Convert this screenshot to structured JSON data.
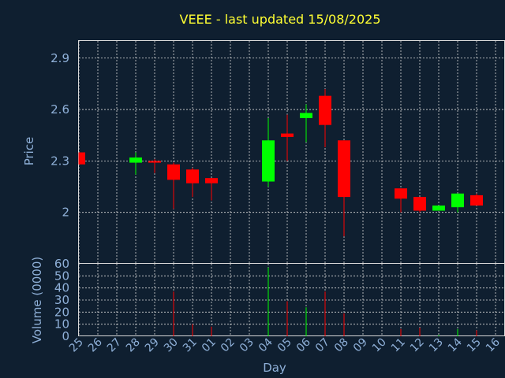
{
  "chart_data": {
    "type": "candlestick",
    "title": "VEEE - last updated 15/08/2025",
    "xlabel": "Day",
    "price_panel": {
      "ylabel": "Price",
      "ylim": [
        1.7,
        3.0
      ],
      "yticks": [
        "2",
        "2.3",
        "2.6",
        "2.9"
      ],
      "grid": true
    },
    "volume_panel": {
      "ylabel": "Volume (0000)",
      "ylim": [
        0,
        60
      ],
      "yticks": [
        "0",
        "10",
        "20",
        "30",
        "40",
        "50",
        "60"
      ],
      "grid": true
    },
    "categories": [
      "25",
      "26",
      "27",
      "28",
      "29",
      "30",
      "31",
      "01",
      "02",
      "03",
      "04",
      "05",
      "06",
      "07",
      "08",
      "09",
      "10",
      "11",
      "12",
      "13",
      "14",
      "15",
      "16"
    ],
    "candles": [
      {
        "day": "25",
        "open": 2.35,
        "close": 2.28,
        "high": 2.35,
        "low": 2.28,
        "volume": 0
      },
      {
        "day": "28",
        "open": 2.29,
        "close": 2.32,
        "high": 2.35,
        "low": 2.22,
        "volume": 0
      },
      {
        "day": "29",
        "open": 2.3,
        "close": 2.29,
        "high": 2.31,
        "low": 2.23,
        "volume": 0
      },
      {
        "day": "30",
        "open": 2.28,
        "close": 2.19,
        "high": 2.29,
        "low": 2.02,
        "volume": 37
      },
      {
        "day": "31",
        "open": 2.25,
        "close": 2.17,
        "high": 2.26,
        "low": 2.09,
        "volume": 10
      },
      {
        "day": "01",
        "open": 2.2,
        "close": 2.17,
        "high": 2.2,
        "low": 2.07,
        "volume": 8
      },
      {
        "day": "04",
        "open": 2.18,
        "close": 2.42,
        "high": 2.55,
        "low": 2.15,
        "volume": 57
      },
      {
        "day": "05",
        "open": 2.46,
        "close": 2.44,
        "high": 2.57,
        "low": 2.3,
        "volume": 29
      },
      {
        "day": "06",
        "open": 2.55,
        "close": 2.58,
        "high": 2.63,
        "low": 2.41,
        "volume": 24
      },
      {
        "day": "07",
        "open": 2.68,
        "close": 2.51,
        "high": 2.72,
        "low": 2.38,
        "volume": 37
      },
      {
        "day": "08",
        "open": 2.42,
        "close": 2.09,
        "high": 2.42,
        "low": 1.86,
        "volume": 19
      },
      {
        "day": "11",
        "open": 2.14,
        "close": 2.08,
        "high": 2.14,
        "low": 2.0,
        "volume": 6
      },
      {
        "day": "12",
        "open": 2.09,
        "close": 2.01,
        "high": 2.09,
        "low": 2.0,
        "volume": 7
      },
      {
        "day": "13",
        "open": 2.01,
        "close": 2.04,
        "high": 2.04,
        "low": 2.01,
        "volume": 1
      },
      {
        "day": "14",
        "open": 2.03,
        "close": 2.11,
        "high": 2.11,
        "low": 2.0,
        "volume": 6
      },
      {
        "day": "15",
        "open": 2.1,
        "close": 2.04,
        "high": 2.11,
        "low": 2.04,
        "volume": 5
      }
    ],
    "colors": {
      "up": "#00ff00",
      "down": "#ff0000",
      "background": "#0f1f30",
      "text": "#8fb0d8",
      "title": "#ffff33",
      "grid": "#d8d8d8"
    }
  }
}
